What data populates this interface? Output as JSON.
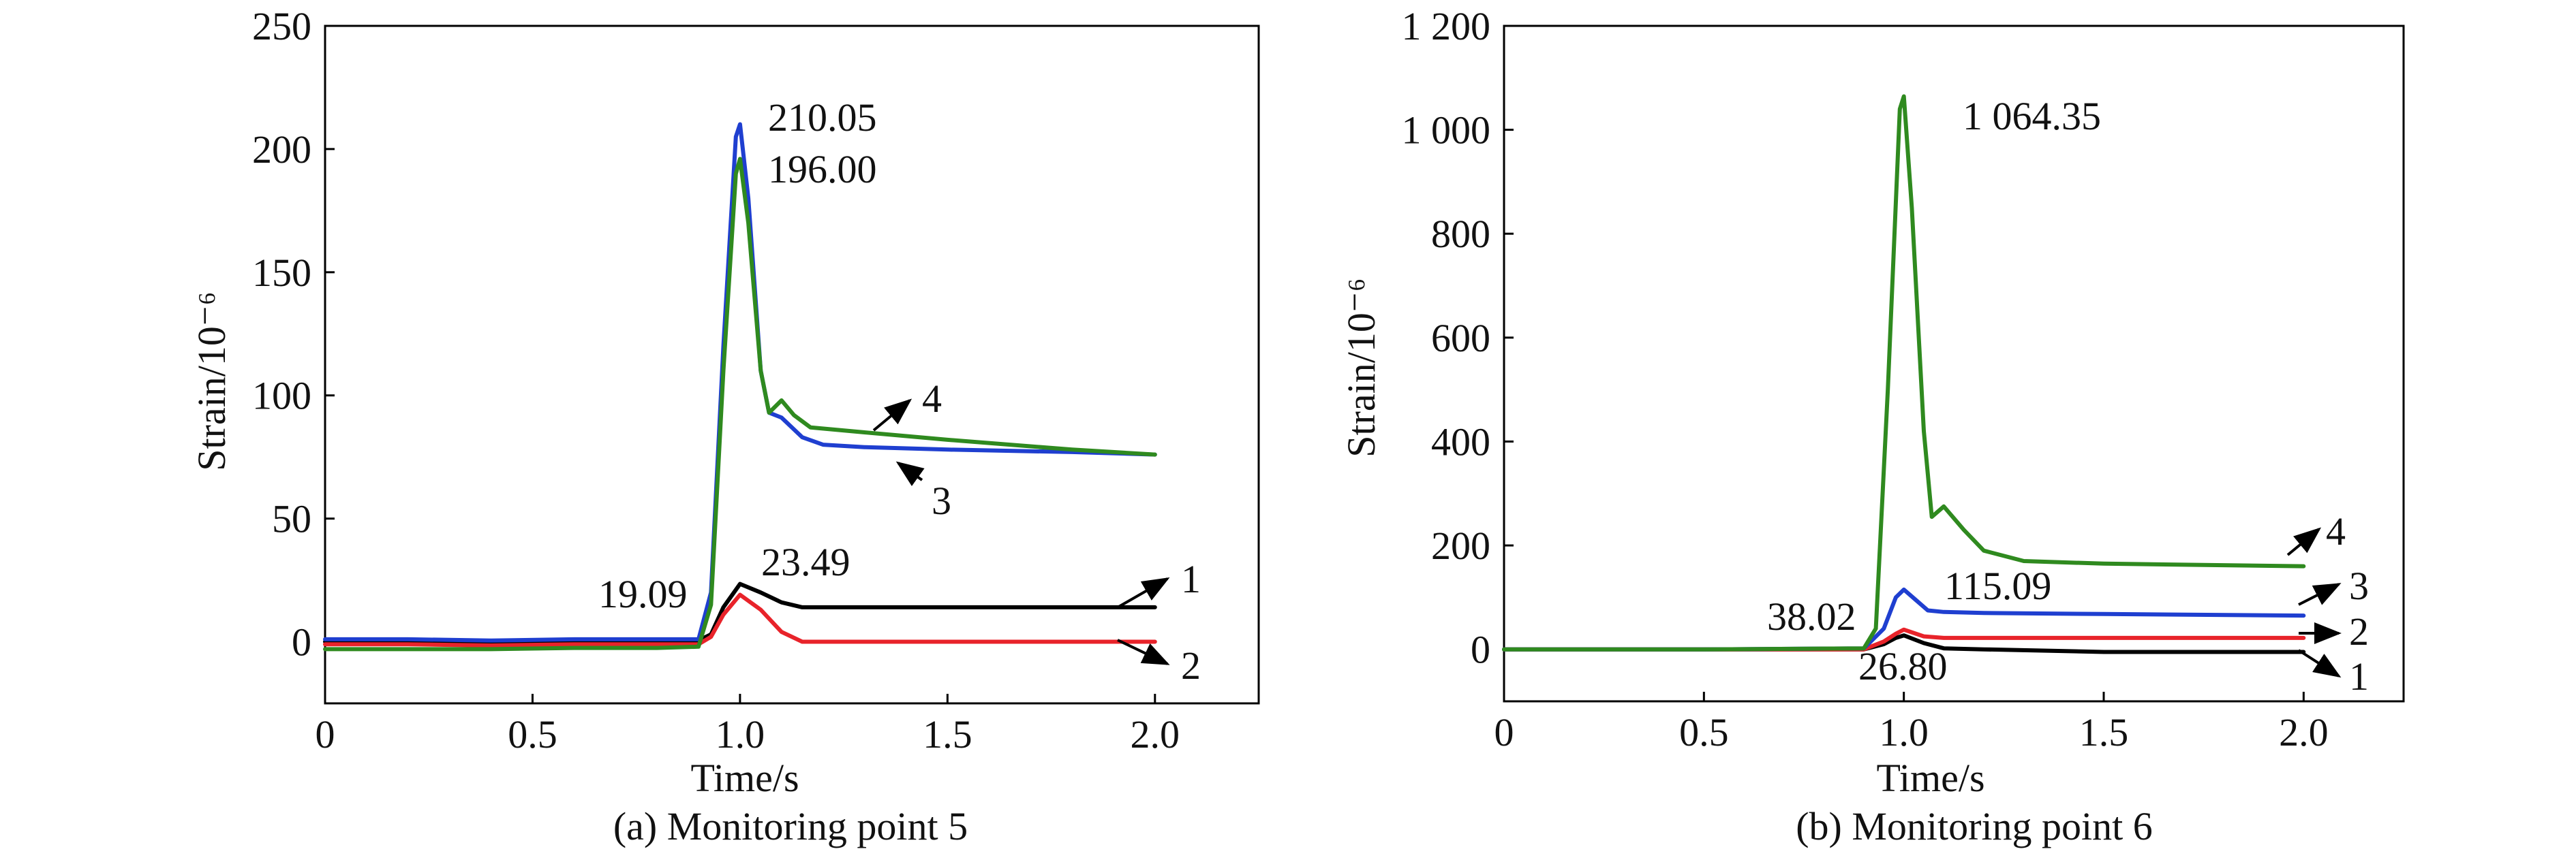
{
  "chart_data": [
    {
      "type": "line",
      "caption": "(a) Monitoring point 5",
      "xlabel": "Time/s",
      "ylabel": "Strain/10⁻⁶",
      "xlim": [
        0,
        2.25
      ],
      "ylim": [
        -25,
        250
      ],
      "xticks": [
        0,
        0.5,
        1.0,
        1.5,
        2.0
      ],
      "xtick_labels": [
        "0",
        "0.5",
        "1.0",
        "1.5",
        "2.0"
      ],
      "yticks": [
        0,
        50,
        100,
        150,
        200,
        250
      ],
      "ytick_labels": [
        "0",
        "50",
        "100",
        "150",
        "200",
        "250"
      ],
      "grid": false,
      "series": [
        {
          "tag": "1",
          "color": "#000000",
          "x": [
            0,
            0.2,
            0.4,
            0.6,
            0.8,
            0.9,
            0.93,
            0.96,
            1.0,
            1.05,
            1.1,
            1.15,
            1.2,
            1.5,
            2.0
          ],
          "y": [
            0,
            0,
            -0.5,
            0,
            0,
            0.5,
            3,
            14,
            23.49,
            20,
            16,
            14,
            14,
            14,
            14
          ]
        },
        {
          "tag": "2",
          "color": "#e8232a",
          "x": [
            0,
            0.2,
            0.4,
            0.6,
            0.8,
            0.9,
            0.93,
            0.96,
            1.0,
            1.05,
            1.1,
            1.15,
            1.2,
            1.5,
            2.0
          ],
          "y": [
            -1,
            -1,
            -1.5,
            -1,
            -1,
            -1,
            2,
            11,
            19.09,
            13,
            4,
            0,
            0,
            0,
            0
          ]
        },
        {
          "tag": "3",
          "color": "#1f3fd0",
          "x": [
            0,
            0.2,
            0.4,
            0.6,
            0.8,
            0.9,
            0.93,
            0.96,
            0.99,
            1.0,
            1.02,
            1.05,
            1.07,
            1.1,
            1.15,
            1.2,
            1.3,
            1.5,
            1.8,
            2.0
          ],
          "y": [
            1,
            1,
            0.5,
            1,
            1,
            1,
            20,
            120,
            205,
            210.05,
            180,
            110,
            93,
            91,
            83,
            80,
            79,
            78,
            77,
            76
          ]
        },
        {
          "tag": "4",
          "color": "#2f8a1f",
          "x": [
            0,
            0.2,
            0.4,
            0.6,
            0.8,
            0.9,
            0.93,
            0.96,
            0.99,
            1.0,
            1.02,
            1.05,
            1.07,
            1.1,
            1.13,
            1.17,
            1.3,
            1.5,
            1.8,
            2.0
          ],
          "y": [
            -3,
            -3,
            -3,
            -2.5,
            -2.5,
            -2,
            15,
            110,
            190,
            196.0,
            170,
            110,
            93,
            98,
            92,
            87,
            85,
            82,
            78,
            76
          ]
        }
      ],
      "annotations": [
        {
          "text": "210.05",
          "x": 1.0,
          "y": 210.05
        },
        {
          "text": "196.00",
          "x": 1.0,
          "y": 196.0
        },
        {
          "text": "23.49",
          "x": 1.0,
          "y": 23.49
        },
        {
          "text": "19.09",
          "x": 1.0,
          "y": 19.09
        }
      ]
    },
    {
      "type": "line",
      "caption": "(b) Monitoring point 6",
      "xlabel": "Time/s",
      "ylabel": "Strain/10⁻⁶",
      "xlim": [
        0,
        2.25
      ],
      "ylim": [
        -100,
        1200
      ],
      "xticks": [
        0,
        0.5,
        1.0,
        1.5,
        2.0
      ],
      "xtick_labels": [
        "0",
        "0.5",
        "1.0",
        "1.5",
        "2.0"
      ],
      "yticks": [
        0,
        200,
        400,
        600,
        800,
        1000,
        1200
      ],
      "ytick_labels": [
        "0",
        "200",
        "400",
        "600",
        "800",
        "1 000",
        "1 200"
      ],
      "grid": false,
      "series": [
        {
          "tag": "1",
          "color": "#000000",
          "x": [
            0,
            0.5,
            0.9,
            0.95,
            0.98,
            1.0,
            1.05,
            1.1,
            1.2,
            1.5,
            2.0
          ],
          "y": [
            0,
            0,
            0,
            10,
            22,
            26.8,
            12,
            2,
            0,
            -5,
            -5
          ]
        },
        {
          "tag": "2",
          "color": "#e8232a",
          "x": [
            0,
            0.5,
            0.9,
            0.95,
            0.98,
            1.0,
            1.05,
            1.1,
            1.2,
            1.5,
            2.0
          ],
          "y": [
            0,
            0,
            0,
            15,
            30,
            38.02,
            25,
            22,
            22,
            22,
            22
          ]
        },
        {
          "tag": "3",
          "color": "#1f3fd0",
          "x": [
            0,
            0.5,
            0.9,
            0.95,
            0.98,
            1.0,
            1.03,
            1.06,
            1.1,
            1.2,
            1.5,
            2.0
          ],
          "y": [
            0,
            0,
            2,
            40,
            100,
            115.09,
            95,
            75,
            72,
            70,
            68,
            65
          ]
        },
        {
          "tag": "4",
          "color": "#2f8a1f",
          "x": [
            0,
            0.5,
            0.9,
            0.93,
            0.96,
            0.99,
            1.0,
            1.02,
            1.05,
            1.07,
            1.1,
            1.15,
            1.2,
            1.3,
            1.5,
            1.8,
            2.0
          ],
          "y": [
            0,
            0,
            2,
            40,
            500,
            1040,
            1064.35,
            850,
            420,
            255,
            275,
            230,
            190,
            170,
            165,
            162,
            160
          ]
        }
      ],
      "annotations": [
        {
          "text": "1 064.35",
          "x": 1.0,
          "y": 1064.35
        },
        {
          "text": "115.09",
          "x": 1.0,
          "y": 115.09
        },
        {
          "text": "38.02",
          "x": 1.0,
          "y": 38.02
        },
        {
          "text": "26.80",
          "x": 1.0,
          "y": 26.8
        }
      ]
    }
  ]
}
